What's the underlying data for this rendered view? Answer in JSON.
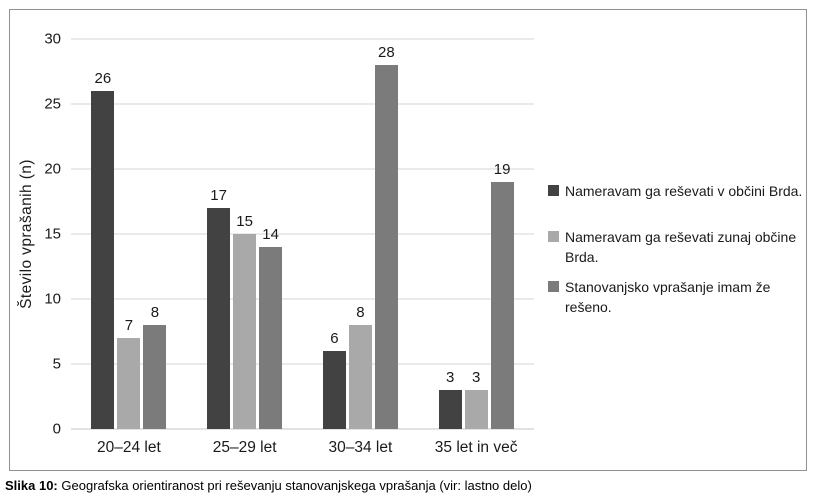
{
  "caption": {
    "label": "Slika 10:",
    "text": "Geografska orientiranost pri reševanju stanovanjskega vprašanja (vir: lastno delo)"
  },
  "colors": {
    "series1": "#424242",
    "series2": "#a9a9a9",
    "series3": "#7b7b7b",
    "gridline": "#d6d6d6",
    "axis_line": "#c4c4c4",
    "chart_border": "#919191",
    "text": "#1a1a1a"
  },
  "chart_data": {
    "type": "bar",
    "title": "",
    "xlabel": "",
    "ylabel": "Število vprašanih (n)",
    "ylim": [
      0,
      30
    ],
    "yticks": [
      0,
      5,
      10,
      15,
      20,
      25,
      30
    ],
    "grid": true,
    "legend_position": "right",
    "categories": [
      "20–24 let",
      "25–29 let",
      "30–34 let",
      "35 let in več"
    ],
    "series": [
      {
        "name": "Nameravam ga reševati v občini Brda.",
        "color": "#424242",
        "values": [
          26,
          17,
          6,
          3
        ]
      },
      {
        "name": "Nameravam ga reševati zunaj občine Brda.",
        "color": "#a9a9a9",
        "values": [
          7,
          15,
          8,
          3
        ]
      },
      {
        "name": "Stanovanjsko vprašanje imam že rešeno.",
        "color": "#7b7b7b",
        "values": [
          8,
          14,
          28,
          19
        ]
      }
    ]
  }
}
